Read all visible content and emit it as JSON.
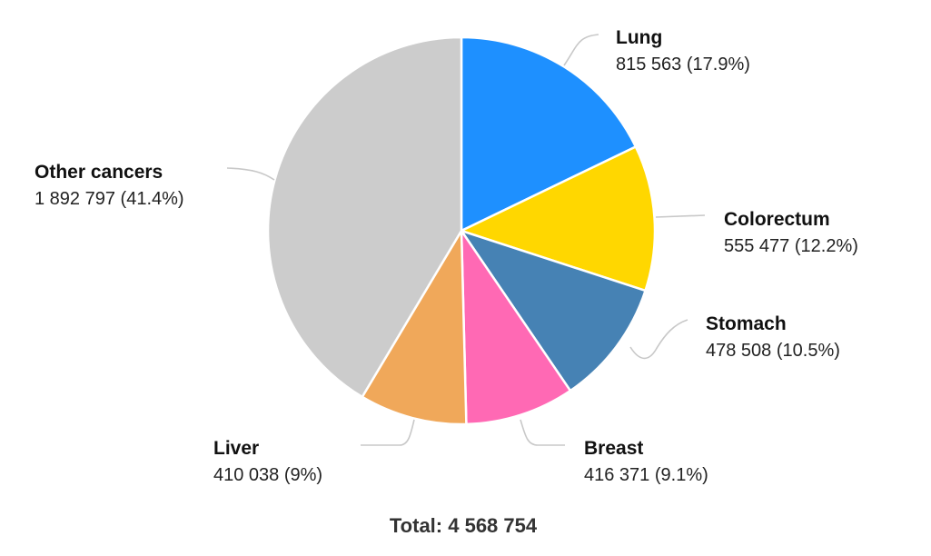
{
  "chart_data": {
    "type": "pie",
    "total_label": "Total: 4 568 754",
    "total": 4568754,
    "slices": [
      {
        "name": "Lung",
        "value": 815563,
        "value_label": "815 563 (17.9%)",
        "percent": 17.9,
        "color": "#1E90FF"
      },
      {
        "name": "Colorectum",
        "value": 555477,
        "value_label": "555 477 (12.2%)",
        "percent": 12.2,
        "color": "#FFD700"
      },
      {
        "name": "Stomach",
        "value": 478508,
        "value_label": "478 508 (10.5%)",
        "percent": 10.5,
        "color": "#4682B4"
      },
      {
        "name": "Breast",
        "value": 416371,
        "value_label": "416 371 (9.1%)",
        "percent": 9.1,
        "color": "#FF69B4"
      },
      {
        "name": "Liver",
        "value": 410038,
        "value_label": "410 038 (9%)",
        "percent": 9.0,
        "color": "#F0A85A"
      },
      {
        "name": "Other cancers",
        "value": 1892797,
        "value_label": "1 892 797 (41.4%)",
        "percent": 41.4,
        "color": "#CCCCCC"
      }
    ]
  }
}
